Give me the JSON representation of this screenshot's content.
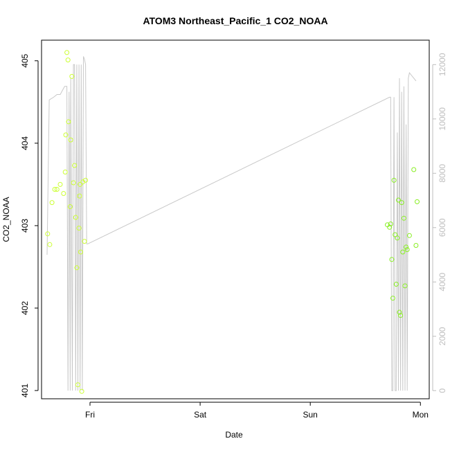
{
  "chart_data": {
    "type": "scatter",
    "title": "ATOM3 Northeast_Pacific_1 CO2_NOAA",
    "xlabel": "Date",
    "ylabel": "CO2_NOAA",
    "x_axis": {
      "range": [
        -0.44,
        3.08
      ],
      "ticks": [
        {
          "value": 0,
          "label": "Fri"
        },
        {
          "value": 1,
          "label": "Sat"
        },
        {
          "value": 2,
          "label": "Sun"
        },
        {
          "value": 3,
          "label": "Mon"
        }
      ]
    },
    "y_axis_left": {
      "range": [
        400.9,
        405.25
      ],
      "ticks": [
        401,
        402,
        403,
        404,
        405
      ]
    },
    "y_axis_right": {
      "range": [
        -300,
        12900
      ],
      "ticks": [
        0,
        2000,
        4000,
        6000,
        8000,
        10000,
        12000
      ]
    },
    "grid": false,
    "legend": "none",
    "colors": {
      "line": "#c8c8c8",
      "points_early": "#ccff33",
      "points_late": "#88ee22",
      "axis": "#000000",
      "right_axis": "#bdbdbd"
    },
    "series": [
      {
        "kind": "points",
        "axis": "left",
        "x": [
          -0.385,
          -0.365,
          -0.345,
          -0.32,
          -0.3,
          -0.27,
          -0.24,
          -0.225,
          -0.22,
          -0.21,
          -0.2,
          -0.195,
          -0.18,
          -0.175,
          -0.165,
          -0.15,
          -0.14,
          -0.13,
          -0.12,
          -0.11,
          -0.1,
          -0.095,
          -0.09,
          -0.085,
          -0.075,
          -0.065,
          -0.05,
          -0.04,
          2.7,
          2.72,
          2.73,
          2.74,
          2.75,
          2.76,
          2.77,
          2.78,
          2.79,
          2.8,
          2.81,
          2.82,
          2.83,
          2.84,
          2.85,
          2.86,
          2.87,
          2.88,
          2.9,
          2.94,
          2.96,
          2.97
        ],
        "y": [
          402.9,
          402.77,
          403.28,
          403.44,
          403.44,
          403.5,
          403.39,
          403.65,
          404.1,
          405.1,
          405.01,
          404.26,
          403.23,
          404.04,
          404.81,
          403.52,
          403.73,
          403.1,
          402.49,
          401.07,
          402.97,
          403.36,
          403.5,
          402.68,
          400.99,
          403.53,
          402.81,
          403.55,
          403.01,
          402.98,
          403.02,
          402.59,
          402.12,
          403.55,
          402.89,
          402.29,
          402.85,
          403.31,
          401.95,
          401.91,
          403.28,
          402.68,
          403.09,
          402.27,
          402.74,
          402.71,
          402.88,
          403.68,
          402.76,
          403.29
        ]
      },
      {
        "kind": "line",
        "axis": "right",
        "x": [
          -0.39,
          -0.37,
          -0.33,
          -0.3,
          -0.27,
          -0.23,
          -0.22,
          -0.21,
          -0.2,
          -0.19,
          -0.18,
          -0.175,
          -0.16,
          -0.15,
          -0.14,
          -0.13,
          -0.12,
          -0.11,
          -0.1,
          -0.09,
          -0.08,
          -0.07,
          -0.06,
          -0.05,
          -0.04,
          -0.03,
          -0.02,
          2.72,
          2.73,
          2.74,
          2.75,
          2.76,
          2.77,
          2.78,
          2.79,
          2.8,
          2.81,
          2.82,
          2.83,
          2.84,
          2.85,
          2.86,
          2.87,
          2.88,
          2.89,
          2.9,
          2.92,
          2.94,
          2.96
        ],
        "y": [
          5000,
          10700,
          10800,
          10900,
          10900,
          11200,
          11200,
          11200,
          0,
          11000,
          0,
          11500,
          0,
          12000,
          12000,
          0,
          12000,
          0,
          12000,
          0,
          12000,
          0,
          12300,
          12200,
          12000,
          5400,
          5400,
          10800,
          10800,
          0,
          0,
          10800,
          0,
          0,
          9500,
          0,
          11500,
          0,
          11000,
          0,
          11200,
          0,
          9800,
          0,
          11500,
          11700,
          11600,
          11500,
          11400
        ]
      }
    ]
  }
}
